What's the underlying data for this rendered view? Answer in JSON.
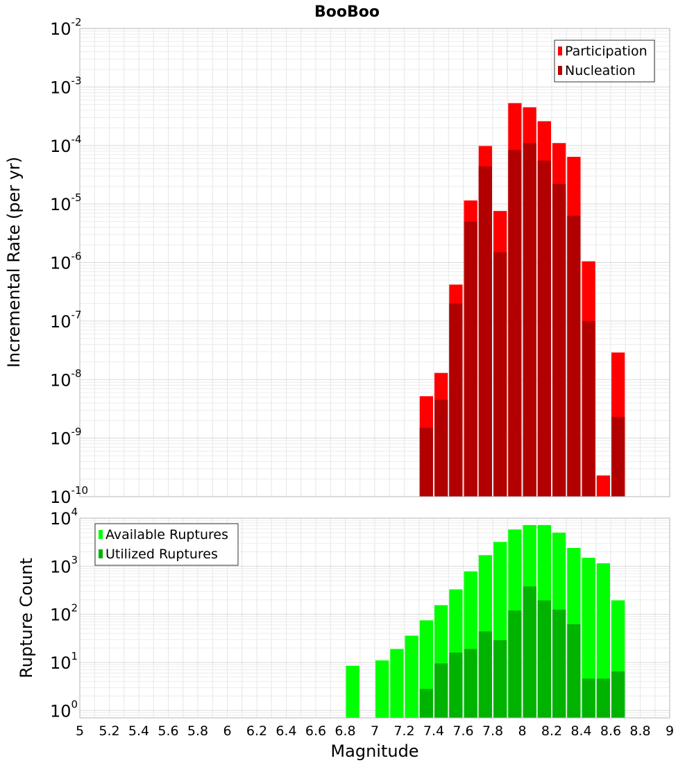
{
  "chart_data": [
    {
      "type": "bar",
      "title": "BooBoo",
      "xlabel": "Magnitude",
      "ylabel": "Incremental Rate (per yr)",
      "yscale": "log",
      "xlim": [
        5,
        9
      ],
      "ylim": [
        1e-10,
        0.01
      ],
      "ytick_exponents": [
        -10,
        -9,
        -8,
        -7,
        -6,
        -5,
        -4,
        -3,
        -2
      ],
      "grid": true,
      "legend_position": "top-right",
      "x": [
        7.35,
        7.45,
        7.55,
        7.65,
        7.75,
        7.85,
        7.95,
        8.05,
        8.15,
        8.25,
        8.35,
        8.45,
        8.55,
        8.65
      ],
      "series": [
        {
          "name": "Participation",
          "color": "#ff0000",
          "values": [
            5.2e-09,
            1.3e-08,
            4.2e-07,
            1.15e-05,
            9.8e-05,
            7.6e-06,
            0.00053,
            0.00045,
            0.00026,
            0.00011,
            6.4e-05,
            1.05e-06,
            2.3e-10,
            2.9e-08
          ]
        },
        {
          "name": "Nucleation",
          "color": "#b20000",
          "values": [
            1.5e-09,
            4.5e-09,
            2e-07,
            5e-06,
            4.4e-05,
            1.5e-06,
            8.4e-05,
            0.00011,
            5.5e-05,
            2.2e-05,
            6.3e-06,
            1e-07,
            null,
            2.3e-09
          ]
        }
      ]
    },
    {
      "type": "bar",
      "title": "",
      "xlabel": "Magnitude",
      "ylabel": "Rupture Count",
      "yscale": "log",
      "xlim": [
        5,
        9
      ],
      "ylim": [
        0.7,
        10000
      ],
      "ytick_exponents": [
        0,
        1,
        2,
        3,
        4
      ],
      "grid": true,
      "legend_position": "top-left",
      "x": [
        6.85,
        6.95,
        7.05,
        7.15,
        7.25,
        7.35,
        7.45,
        7.55,
        7.65,
        7.75,
        7.85,
        7.95,
        8.05,
        8.15,
        8.25,
        8.35,
        8.45,
        8.55,
        8.65
      ],
      "series": [
        {
          "name": "Available Ruptures",
          "color": "#00ff00",
          "values": [
            8.5,
            null,
            11,
            19,
            36,
            75,
            155,
            330,
            780,
            1700,
            3200,
            5800,
            7200,
            7200,
            5000,
            2400,
            1500,
            1150,
            195
          ]
        },
        {
          "name": "Utilized Ruptures",
          "color": "#00b300",
          "values": [
            null,
            null,
            null,
            null,
            null,
            2.8,
            9.5,
            16,
            19,
            44,
            29,
            120,
            380,
            195,
            125,
            62,
            4.6,
            4.6,
            6.5
          ]
        }
      ]
    }
  ],
  "x_ticks": [
    "5",
    "5.2",
    "5.4",
    "5.6",
    "5.8",
    "6",
    "6.2",
    "6.4",
    "6.6",
    "6.8",
    "7",
    "7.2",
    "7.4",
    "7.6",
    "7.8",
    "8",
    "8.2",
    "8.4",
    "8.6",
    "8.8",
    "9"
  ]
}
